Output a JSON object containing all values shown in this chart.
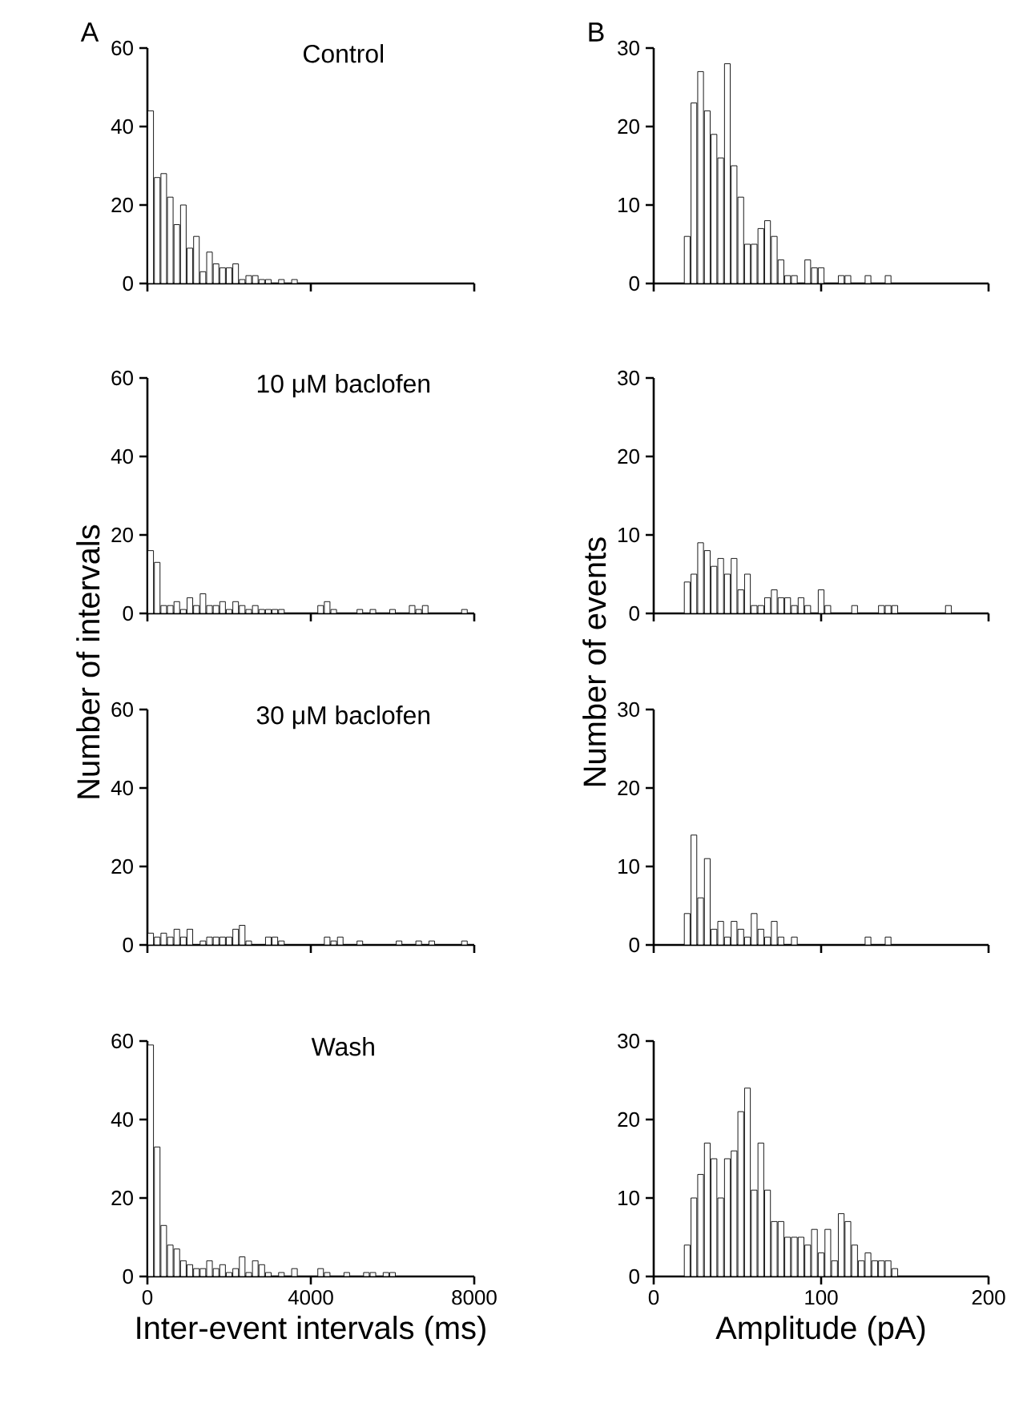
{
  "chart_data": [
    {
      "type": "histogram",
      "title": "Control",
      "annotations": [
        "A"
      ],
      "color": "#ffffff",
      "tick_labels": "y",
      "xlim": [
        0,
        8000
      ],
      "xticks": [
        0,
        4000,
        8000
      ],
      "ylim": [
        0,
        60
      ],
      "yticks": [
        0,
        20,
        40,
        60
      ],
      "bins": [
        0,
        160,
        320,
        480,
        640,
        800,
        960,
        1120,
        1280,
        1440,
        1600,
        1760,
        1920,
        2080,
        2240,
        2400,
        2560,
        2720,
        2880,
        3040,
        3200,
        3360,
        3520,
        3680
      ],
      "values": [
        44,
        27,
        28,
        22,
        15,
        20,
        9,
        12,
        3,
        8,
        5,
        4,
        4,
        5,
        1,
        2,
        2,
        1,
        1,
        0,
        1,
        0,
        1
      ]
    },
    {
      "type": "histogram",
      "annotations": [
        "B"
      ],
      "color": "#ffffff",
      "tick_labels": "y",
      "xlim": [
        0,
        200
      ],
      "xticks": [
        0,
        100,
        200
      ],
      "ylim": [
        0,
        30
      ],
      "yticks": [
        0,
        10,
        20,
        30
      ],
      "bins": [
        18,
        22,
        26,
        30,
        34,
        38,
        42,
        46,
        50,
        54,
        58,
        62,
        66,
        70,
        74,
        78,
        82,
        86,
        90,
        94,
        98,
        102,
        106,
        110,
        114,
        118,
        122,
        126,
        130,
        134,
        138,
        142
      ],
      "values": [
        6,
        23,
        27,
        22,
        19,
        16,
        28,
        15,
        11,
        5,
        5,
        7,
        8,
        6,
        3,
        1,
        1,
        0,
        3,
        2,
        2,
        0,
        0,
        1,
        1,
        0,
        0,
        1,
        0,
        0,
        1
      ]
    },
    {
      "type": "histogram",
      "title": "10 μM baclofen",
      "ylabel": "Number of intervals",
      "color": "#ffffff",
      "tick_labels": "y",
      "xlim": [
        0,
        8000
      ],
      "xticks": [
        0,
        4000,
        8000
      ],
      "ylim": [
        0,
        60
      ],
      "yticks": [
        0,
        20,
        40,
        60
      ],
      "bins": [
        0,
        160,
        320,
        480,
        640,
        800,
        960,
        1120,
        1280,
        1440,
        1600,
        1760,
        1920,
        2080,
        2240,
        2400,
        2560,
        2720,
        2880,
        3040,
        3200,
        3360,
        3520,
        3680,
        3840,
        4000,
        4160,
        4320,
        4480,
        4640,
        4800,
        4960,
        5120,
        5280,
        5440,
        5600,
        5760,
        5920,
        6080,
        6240,
        6400,
        6560,
        6720,
        6880,
        7040,
        7200,
        7360,
        7520,
        7680,
        7840
      ],
      "values": [
        16,
        13,
        2,
        2,
        3,
        1,
        4,
        2,
        5,
        2,
        2,
        3,
        1,
        3,
        2,
        1,
        2,
        1,
        1,
        1,
        1,
        0,
        0,
        0,
        0,
        0,
        2,
        3,
        1,
        0,
        0,
        0,
        1,
        0,
        1,
        0,
        0,
        1,
        0,
        0,
        2,
        1,
        2,
        0,
        0,
        0,
        0,
        0,
        1
      ]
    },
    {
      "type": "histogram",
      "ylabel": "Number of events",
      "color": "#ffffff",
      "tick_labels": "y",
      "xlim": [
        0,
        200
      ],
      "xticks": [
        0,
        100,
        200
      ],
      "ylim": [
        0,
        30
      ],
      "yticks": [
        0,
        10,
        20,
        30
      ],
      "bins": [
        18,
        22,
        26,
        30,
        34,
        38,
        42,
        46,
        50,
        54,
        58,
        62,
        66,
        70,
        74,
        78,
        82,
        86,
        90,
        94,
        98,
        102,
        106,
        110,
        114,
        118,
        122,
        126,
        130,
        134,
        138,
        142,
        146,
        150,
        154,
        158,
        162,
        166,
        170,
        174,
        178
      ],
      "values": [
        4,
        5,
        9,
        8,
        6,
        7,
        5,
        7,
        3,
        5,
        1,
        1,
        2,
        3,
        2,
        2,
        1,
        2,
        1,
        0,
        3,
        1,
        0,
        0,
        0,
        1,
        0,
        0,
        0,
        1,
        1,
        1,
        0,
        0,
        0,
        0,
        0,
        0,
        0,
        1
      ]
    },
    {
      "type": "histogram",
      "title": "30 μM baclofen",
      "color": "#ffffff",
      "tick_labels": "y",
      "xlim": [
        0,
        8000
      ],
      "xticks": [
        0,
        4000,
        8000
      ],
      "ylim": [
        0,
        60
      ],
      "yticks": [
        0,
        20,
        40,
        60
      ],
      "bins": [
        0,
        160,
        320,
        480,
        640,
        800,
        960,
        1120,
        1280,
        1440,
        1600,
        1760,
        1920,
        2080,
        2240,
        2400,
        2560,
        2720,
        2880,
        3040,
        3200,
        3360,
        3520,
        3680,
        3840,
        4000,
        4160,
        4320,
        4480,
        4640,
        4800,
        4960,
        5120,
        5280,
        5440,
        5600,
        5760,
        5920,
        6080,
        6240,
        6400,
        6560,
        6720,
        6880,
        7040,
        7200,
        7360,
        7520,
        7680,
        7840
      ],
      "values": [
        3,
        2,
        3,
        2,
        4,
        2,
        4,
        0,
        1,
        2,
        2,
        2,
        2,
        4,
        5,
        1,
        0,
        0,
        2,
        2,
        1,
        0,
        0,
        0,
        0,
        0,
        0,
        2,
        1,
        2,
        0,
        0,
        1,
        0,
        0,
        0,
        0,
        0,
        1,
        0,
        0,
        1,
        0,
        1,
        0,
        0,
        0,
        0,
        1
      ]
    },
    {
      "type": "histogram",
      "color": "#ffffff",
      "tick_labels": "y",
      "xlim": [
        0,
        200
      ],
      "xticks": [
        0,
        100,
        200
      ],
      "ylim": [
        0,
        30
      ],
      "yticks": [
        0,
        10,
        20,
        30
      ],
      "bins": [
        18,
        22,
        26,
        30,
        34,
        38,
        42,
        46,
        50,
        54,
        58,
        62,
        66,
        70,
        74,
        78,
        82,
        86,
        90,
        94,
        98,
        102,
        106,
        110,
        114,
        118,
        122,
        126,
        130,
        134,
        138,
        142
      ],
      "values": [
        4,
        14,
        6,
        11,
        2,
        3,
        1,
        3,
        2,
        1,
        4,
        2,
        1,
        3,
        1,
        0,
        1,
        0,
        0,
        0,
        0,
        0,
        0,
        0,
        0,
        0,
        0,
        1,
        0,
        0,
        1
      ]
    },
    {
      "type": "histogram",
      "title": "Wash",
      "xlabel": "Inter-event intervals (ms)",
      "color": "#ffffff",
      "xlim": [
        0,
        8000
      ],
      "xticks": [
        0,
        4000,
        8000
      ],
      "ylim": [
        0,
        60
      ],
      "yticks": [
        0,
        20,
        40,
        60
      ],
      "bins": [
        0,
        160,
        320,
        480,
        640,
        800,
        960,
        1120,
        1280,
        1440,
        1600,
        1760,
        1920,
        2080,
        2240,
        2400,
        2560,
        2720,
        2880,
        3040,
        3200,
        3360,
        3520,
        3680,
        3840,
        4000,
        4160,
        4320,
        4480,
        4640,
        4800,
        4960,
        5120,
        5280,
        5440,
        5600,
        5760,
        5920,
        6080
      ],
      "values": [
        59,
        33,
        13,
        8,
        7,
        4,
        3,
        2,
        2,
        4,
        2,
        3,
        1,
        2,
        5,
        1,
        4,
        3,
        1,
        0,
        1,
        0,
        2,
        0,
        0,
        0,
        2,
        1,
        0,
        0,
        1,
        0,
        0,
        1,
        1,
        0,
        1,
        1
      ]
    },
    {
      "type": "histogram",
      "xlabel": "Amplitude (pA)",
      "color": "#ffffff",
      "xlim": [
        0,
        200
      ],
      "xticks": [
        0,
        100,
        200
      ],
      "ylim": [
        0,
        30
      ],
      "yticks": [
        0,
        10,
        20,
        30
      ],
      "bins": [
        18,
        22,
        26,
        30,
        34,
        38,
        42,
        46,
        50,
        54,
        58,
        62,
        66,
        70,
        74,
        78,
        82,
        86,
        90,
        94,
        98,
        102,
        106,
        110,
        114,
        118,
        122,
        126,
        130,
        134,
        138,
        142,
        146
      ],
      "values": [
        4,
        10,
        13,
        17,
        15,
        10,
        15,
        16,
        21,
        24,
        11,
        17,
        11,
        7,
        7,
        5,
        5,
        5,
        4,
        6,
        3,
        6,
        2,
        8,
        7,
        4,
        2,
        3,
        2,
        2,
        2,
        1
      ]
    }
  ]
}
